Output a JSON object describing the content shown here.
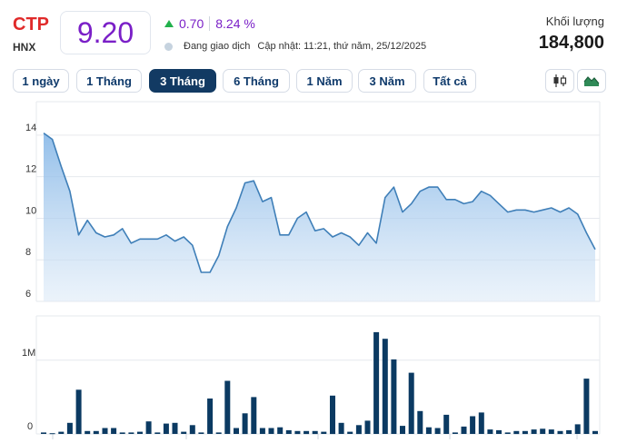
{
  "header": {
    "ticker": "CTP",
    "exchange": "HNX",
    "price": "9.20",
    "change": "0.70",
    "change_pct": "8.24 %",
    "status": "Đang giao dịch",
    "updated": "Cập nhật: 11:21, thứ năm, 25/12/2025",
    "volume_label": "Khối lượng",
    "volume_value": "184,800"
  },
  "tabs": [
    {
      "label": "1 ngày",
      "active": false
    },
    {
      "label": "1 Tháng",
      "active": false
    },
    {
      "label": "3 Tháng",
      "active": true
    },
    {
      "label": "6 Tháng",
      "active": false
    },
    {
      "label": "1 Năm",
      "active": false
    },
    {
      "label": "3 Năm",
      "active": false
    },
    {
      "label": "Tất cả",
      "active": false
    }
  ],
  "tools": [
    "candlestick-chart-icon",
    "area-chart-icon"
  ],
  "colors": {
    "price": "#7a1fc7",
    "up": "#22b14c",
    "ticker": "#e02a2a",
    "line": "#3f7fb8",
    "bar": "#0b3a62",
    "active_tab": "#123a63"
  },
  "chart_data": {
    "type": "area",
    "price": {
      "ylim": [
        6,
        15
      ],
      "ytick_labels": [
        "6",
        "8",
        "10",
        "12",
        "14"
      ],
      "yticks": [
        6,
        8,
        10,
        12,
        14
      ],
      "values": [
        14.1,
        13.8,
        12.5,
        11.3,
        9.2,
        9.9,
        9.3,
        9.1,
        9.2,
        9.5,
        8.8,
        9.0,
        9.0,
        9.0,
        9.2,
        8.9,
        9.1,
        8.7,
        7.4,
        7.4,
        8.2,
        9.6,
        10.5,
        11.7,
        11.8,
        10.8,
        11.0,
        9.2,
        9.2,
        10.0,
        10.3,
        9.4,
        9.5,
        9.1,
        9.3,
        9.1,
        8.7,
        9.3,
        8.8,
        11.0,
        11.5,
        10.3,
        10.7,
        11.3,
        11.5,
        11.5,
        10.9,
        10.9,
        10.7,
        10.8,
        11.3,
        11.1,
        10.7,
        10.3,
        10.4,
        10.4,
        10.3,
        10.4,
        10.5,
        10.3,
        10.5,
        10.2,
        9.3,
        8.5
      ]
    },
    "volume": {
      "ylim": [
        0,
        1600000
      ],
      "ytick_labels": [
        "0",
        "1M"
      ],
      "yticks": [
        0,
        1000000
      ],
      "values": [
        20000,
        10000,
        30000,
        150000,
        600000,
        40000,
        40000,
        80000,
        80000,
        20000,
        20000,
        30000,
        170000,
        20000,
        140000,
        150000,
        30000,
        120000,
        20000,
        480000,
        20000,
        720000,
        80000,
        280000,
        500000,
        80000,
        80000,
        90000,
        50000,
        40000,
        40000,
        40000,
        30000,
        520000,
        150000,
        30000,
        120000,
        180000,
        1380000,
        1290000,
        1010000,
        110000,
        830000,
        310000,
        90000,
        80000,
        260000,
        20000,
        100000,
        240000,
        290000,
        60000,
        50000,
        20000,
        40000,
        40000,
        60000,
        70000,
        60000,
        40000,
        50000,
        130000,
        750000,
        40000
      ]
    }
  }
}
